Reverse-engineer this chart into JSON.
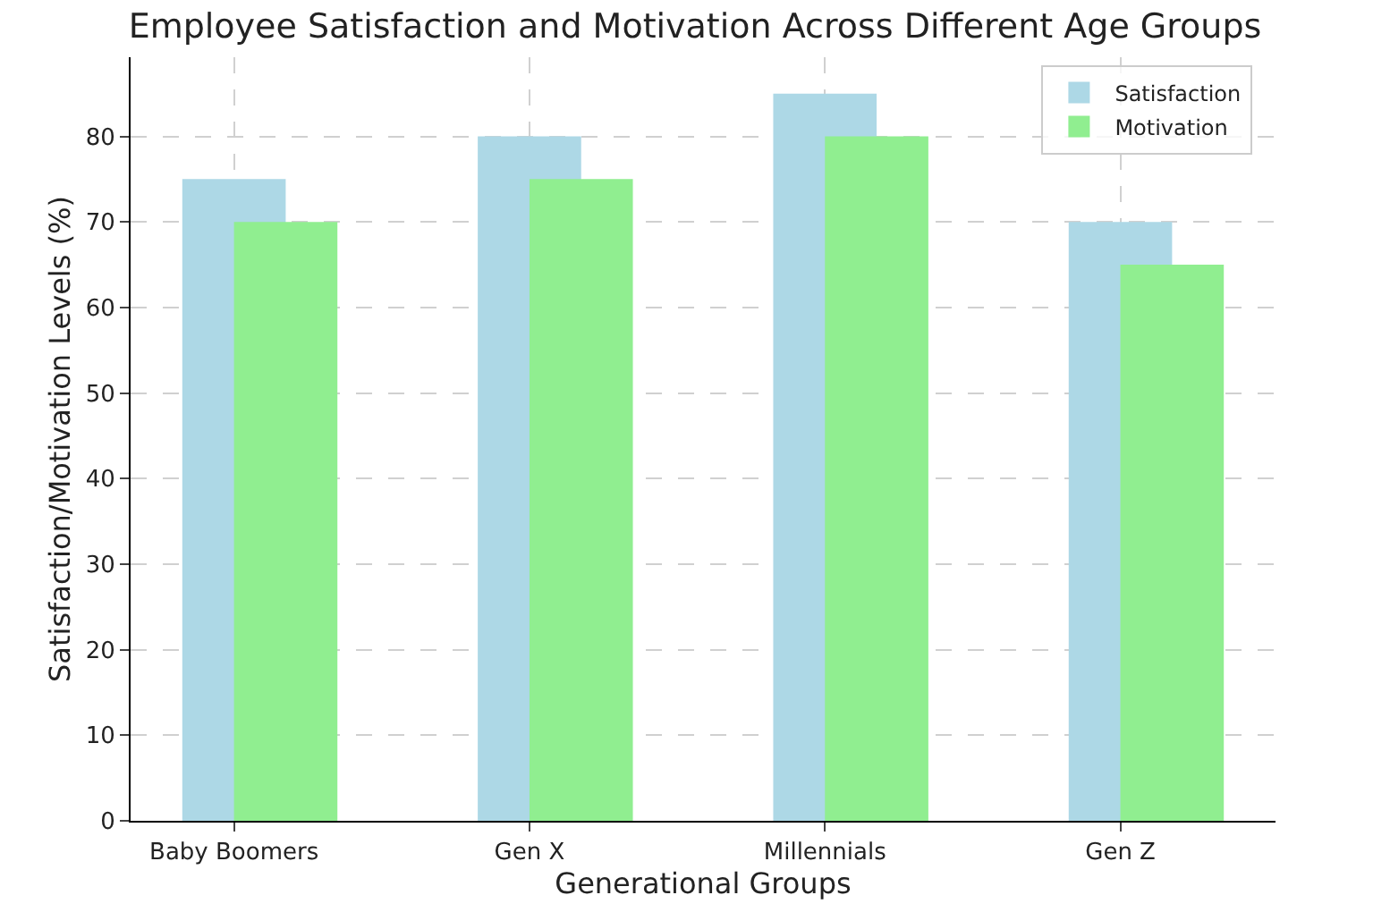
{
  "chart_data": {
    "type": "bar",
    "title": "Employee Satisfaction and Motivation Across Different Age Groups",
    "xlabel": "Generational Groups",
    "ylabel": "Satisfaction/Motivation Levels (%)",
    "categories": [
      "Baby Boomers",
      "Gen X",
      "Millennials",
      "Gen Z"
    ],
    "series": [
      {
        "name": "Satisfaction",
        "color": "#add8e6",
        "values": [
          75,
          80,
          85,
          70
        ]
      },
      {
        "name": "Motivation",
        "color": "#90ee90",
        "values": [
          70,
          75,
          80,
          65
        ]
      }
    ],
    "ylim": [
      0,
      89.25
    ],
    "yticks": [
      0,
      10,
      20,
      30,
      40,
      50,
      60,
      70,
      80
    ],
    "grid": true,
    "legend": "top right"
  }
}
